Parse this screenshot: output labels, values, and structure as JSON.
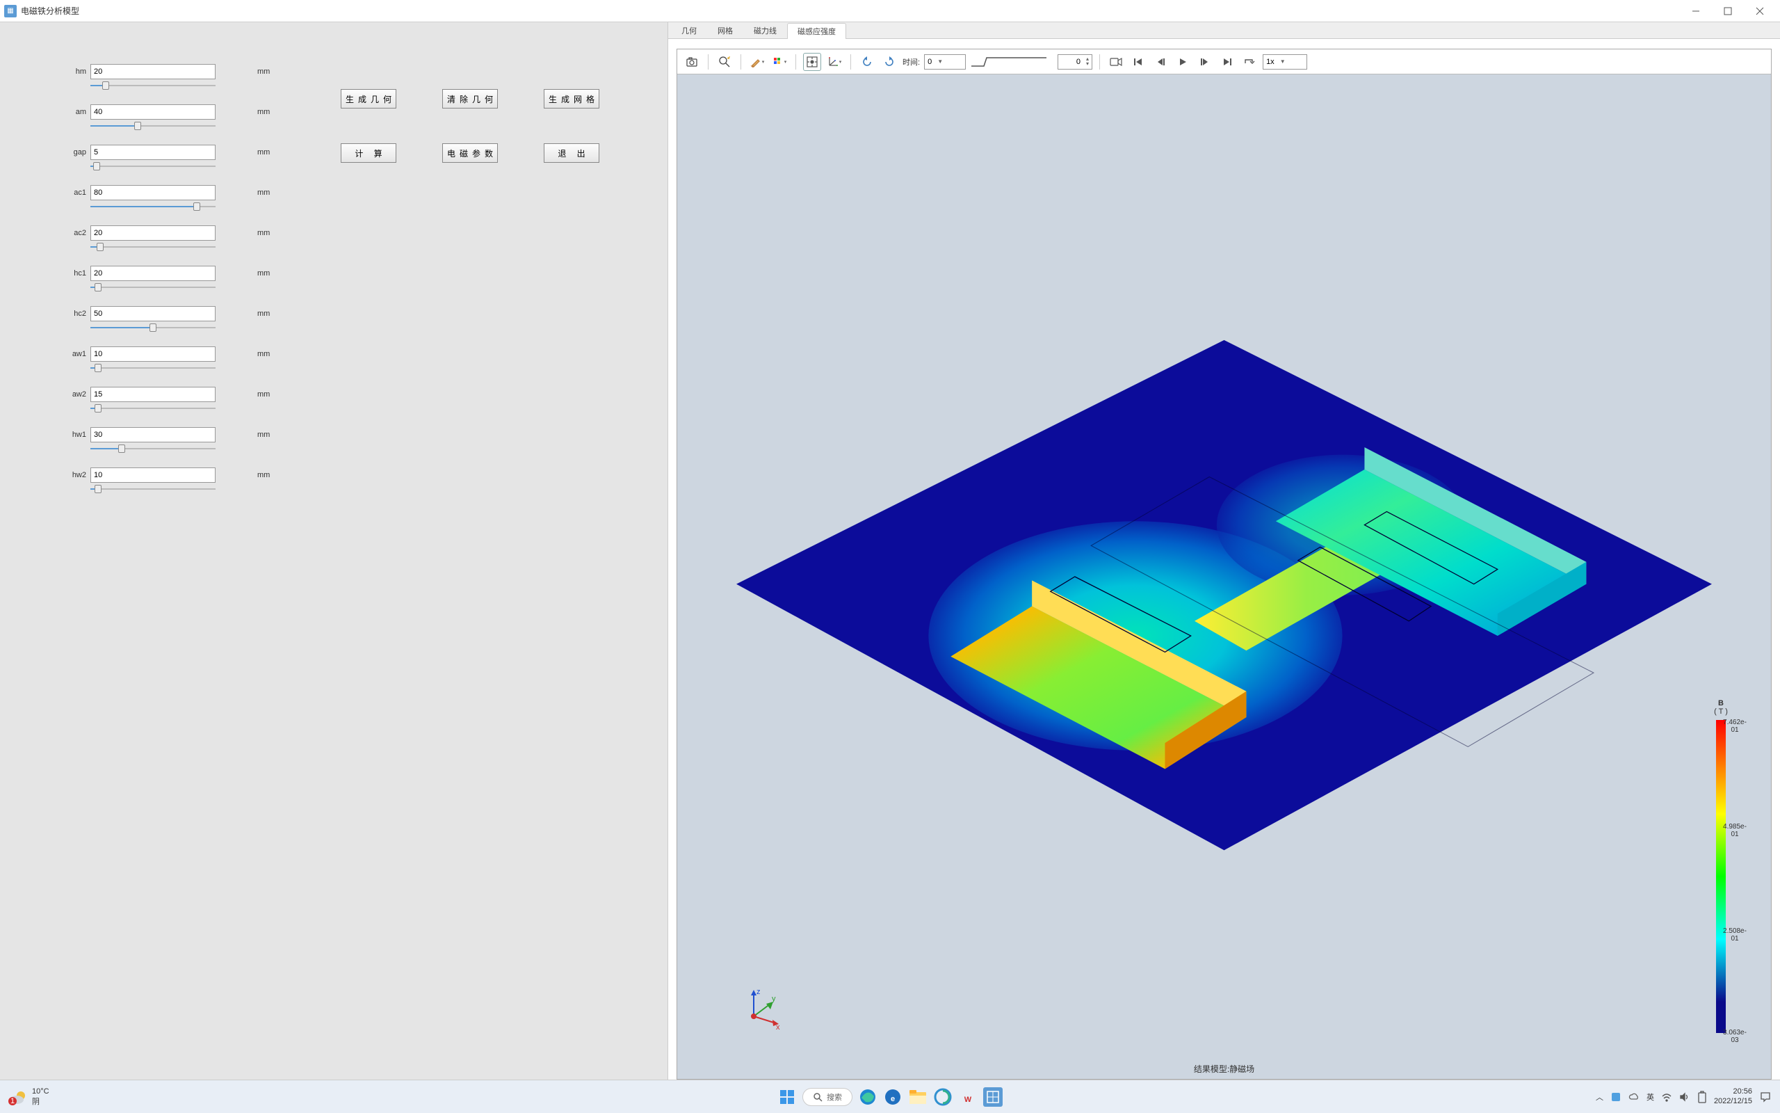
{
  "window": {
    "title": "电磁铁分析模型"
  },
  "params": [
    {
      "name": "hm",
      "value": "20",
      "pct": 12,
      "unit": "mm"
    },
    {
      "name": "am",
      "value": "40",
      "pct": 38,
      "unit": "mm"
    },
    {
      "name": "gap",
      "value": "5",
      "pct": 5,
      "unit": "mm"
    },
    {
      "name": "ac1",
      "value": "80",
      "pct": 85,
      "unit": "mm"
    },
    {
      "name": "ac2",
      "value": "20",
      "pct": 8,
      "unit": "mm"
    },
    {
      "name": "hc1",
      "value": "20",
      "pct": 6,
      "unit": "mm"
    },
    {
      "name": "hc2",
      "value": "50",
      "pct": 50,
      "unit": "mm"
    },
    {
      "name": "aw1",
      "value": "10",
      "pct": 6,
      "unit": "mm"
    },
    {
      "name": "aw2",
      "value": "15",
      "pct": 6,
      "unit": "mm"
    },
    {
      "name": "hw1",
      "value": "30",
      "pct": 25,
      "unit": "mm"
    },
    {
      "name": "hw2",
      "value": "10",
      "pct": 6,
      "unit": "mm"
    }
  ],
  "buttons": {
    "row1": [
      "生成几何",
      "清除几何",
      "生成网格"
    ],
    "row2": [
      "计 算",
      "电磁参数",
      "退 出"
    ]
  },
  "tabs": {
    "items": [
      "几何",
      "网格",
      "磁力线",
      "磁感应强度"
    ],
    "active": 3
  },
  "toolbar": {
    "time_label": "时间:",
    "time_value": "0",
    "step_value": "0",
    "speed": "1x"
  },
  "result_footer": "结果模型:静磁场",
  "legend": {
    "title": "B",
    "unit": "( T )",
    "max": "7.462e-01",
    "q3": "4.985e-01",
    "q1": "2.508e-01",
    "min": "3.063e-03"
  },
  "taskbar": {
    "weather_temp": "10°C",
    "weather_desc": "阴",
    "weather_badge": "1",
    "search_placeholder": "搜索",
    "ime": "英",
    "time": "20:56",
    "date": "2022/12/15"
  },
  "simulation": {
    "type": "3d-field-plot",
    "view": "isometric",
    "background_color": "#cdd6e0",
    "plane_color": "#0c0c9a",
    "field_gradient": [
      "#0c0c9a",
      "#0088cc",
      "#00eecc",
      "#66ff66",
      "#ffff33",
      "#ff8800",
      "#ff1100"
    ]
  }
}
